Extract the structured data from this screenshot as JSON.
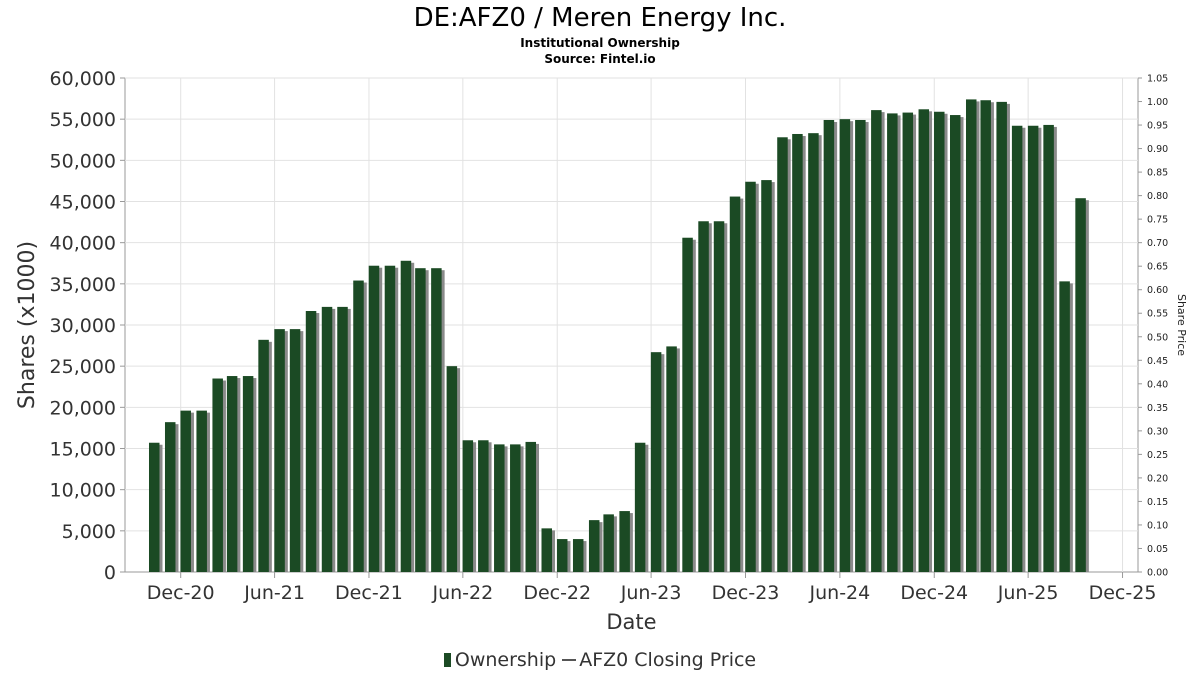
{
  "header": {
    "title": "DE:AFZ0 / Meren Energy Inc.",
    "subtitle": "Institutional Ownership",
    "source": "Source: Fintel.io"
  },
  "legend": {
    "ownership": "Ownership",
    "price": "AFZ0 Closing Price"
  },
  "colors": {
    "bar": "#1b4a24",
    "bar_shadow": "#8a8a8a",
    "grid": "#e2e2e2",
    "axis": "#999999"
  },
  "chart_data": {
    "type": "bar",
    "title": "DE:AFZ0 / Meren Energy Inc.",
    "subtitle": "Institutional Ownership",
    "xlabel": "Date",
    "ylabel": "Shares (x1000)",
    "y2label": "Share Price",
    "ylim": [
      0,
      60000
    ],
    "y2lim": [
      0,
      1.05
    ],
    "xlim": [
      "2020-08-15",
      "2025-12-31"
    ],
    "grid": true,
    "legend_position": "bottom",
    "yticks": [
      "0",
      "5,000",
      "10,000",
      "15,000",
      "20,000",
      "25,000",
      "30,000",
      "35,000",
      "40,000",
      "45,000",
      "50,000",
      "55,000",
      "60,000"
    ],
    "y2ticks": [
      "0.00",
      "0.05",
      "0.10",
      "0.15",
      "0.20",
      "0.25",
      "0.30",
      "0.35",
      "0.40",
      "0.45",
      "0.50",
      "0.55",
      "0.60",
      "0.65",
      "0.70",
      "0.75",
      "0.80",
      "0.85",
      "0.90",
      "0.95",
      "1.00",
      "1.05"
    ],
    "xticks": [
      {
        "label": "Dec-20",
        "date": "2020-12-01"
      },
      {
        "label": "Jun-21",
        "date": "2021-06-01"
      },
      {
        "label": "Dec-21",
        "date": "2021-12-01"
      },
      {
        "label": "Jun-22",
        "date": "2022-06-01"
      },
      {
        "label": "Dec-22",
        "date": "2022-12-01"
      },
      {
        "label": "Jun-23",
        "date": "2023-06-01"
      },
      {
        "label": "Dec-23",
        "date": "2023-12-01"
      },
      {
        "label": "Jun-24",
        "date": "2024-06-01"
      },
      {
        "label": "Dec-24",
        "date": "2024-12-01"
      },
      {
        "label": "Jun-25",
        "date": "2025-06-01"
      },
      {
        "label": "Dec-25",
        "date": "2025-12-01"
      }
    ],
    "series": [
      {
        "name": "Ownership",
        "x": [
          "2020-10-01",
          "2020-11-01",
          "2020-12-01",
          "2021-01-01",
          "2021-02-01",
          "2021-03-01",
          "2021-04-01",
          "2021-05-01",
          "2021-06-01",
          "2021-07-01",
          "2021-08-01",
          "2021-09-01",
          "2021-10-01",
          "2021-11-01",
          "2021-12-01",
          "2022-01-01",
          "2022-02-01",
          "2022-03-01",
          "2022-04-01",
          "2022-05-01",
          "2022-06-01",
          "2022-07-01",
          "2022-08-01",
          "2022-09-01",
          "2022-10-01",
          "2022-11-01",
          "2022-12-01",
          "2023-01-01",
          "2023-02-01",
          "2023-03-01",
          "2023-04-01",
          "2023-05-01",
          "2023-06-01",
          "2023-07-01",
          "2023-08-01",
          "2023-09-01",
          "2023-10-01",
          "2023-11-01",
          "2023-12-01",
          "2024-01-01",
          "2024-02-01",
          "2024-03-01",
          "2024-04-01",
          "2024-05-01",
          "2024-06-01",
          "2024-07-01",
          "2024-08-01",
          "2024-09-01",
          "2024-10-01",
          "2024-11-01",
          "2024-12-01",
          "2025-01-01",
          "2025-02-01",
          "2025-03-01",
          "2025-04-01",
          "2025-05-01",
          "2025-06-01",
          "2025-07-01",
          "2025-08-01",
          "2025-09-01"
        ],
        "values": [
          15700,
          18200,
          19600,
          19600,
          23500,
          23800,
          23800,
          28200,
          29500,
          29500,
          31700,
          32200,
          32200,
          35400,
          37200,
          37200,
          37800,
          36900,
          36900,
          25000,
          16000,
          16000,
          15500,
          15500,
          15800,
          5300,
          4000,
          4000,
          6300,
          7000,
          7400,
          15700,
          26700,
          27400,
          40600,
          42600,
          42600,
          45600,
          47400,
          47600,
          52800,
          53200,
          53300,
          54900,
          55000,
          54900,
          56100,
          55700,
          55800,
          56200,
          55900,
          55500,
          57400,
          57300,
          57100,
          54200,
          54200,
          54300,
          35300,
          45400
        ]
      },
      {
        "name": "AFZ0 Closing Price",
        "x": [],
        "values": []
      }
    ]
  }
}
